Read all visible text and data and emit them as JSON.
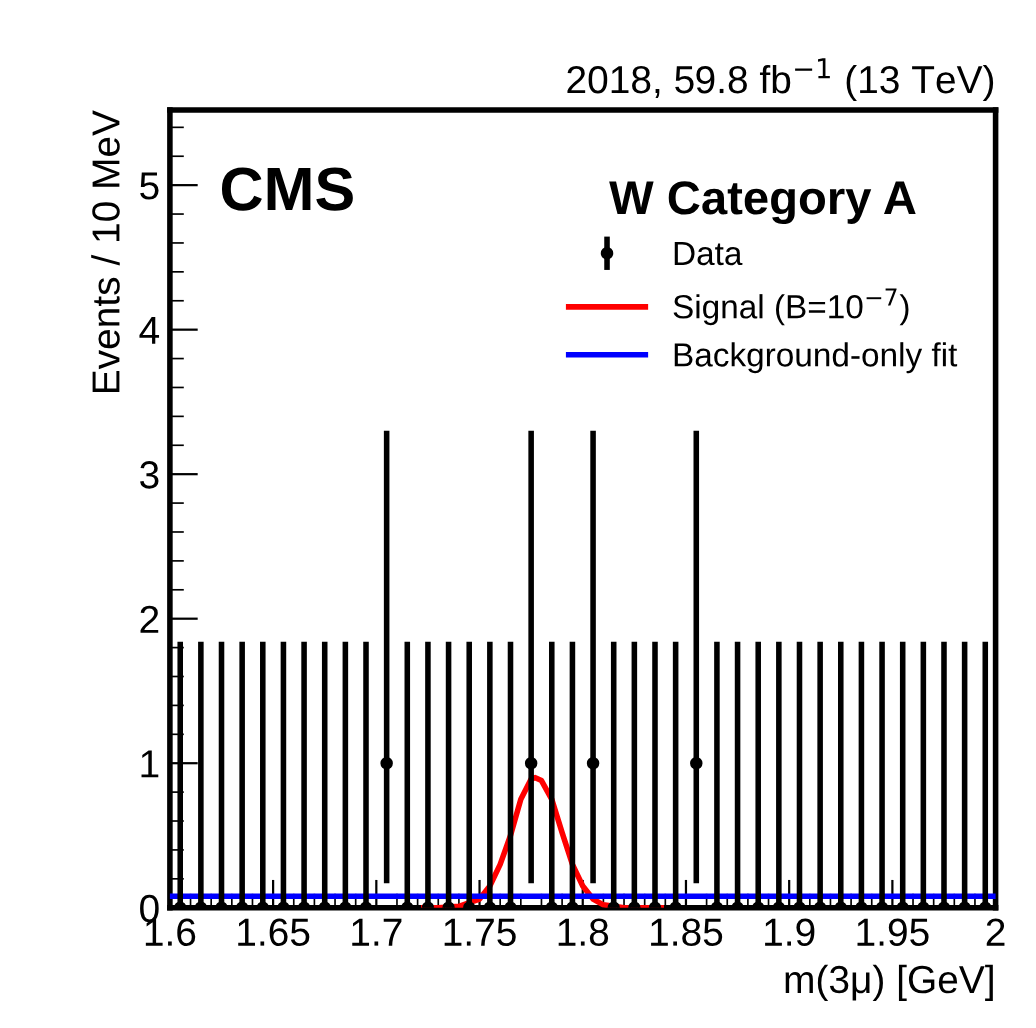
{
  "chart_data": {
    "type": "scatter",
    "title": "2018, 59.8 fb$^{−1}$ (13 TeV)",
    "xlabel": "m(3μ) [GeV]",
    "ylabel": "Events / 10 MeV",
    "legend_title": "W Category A",
    "annotations": [
      "CMS"
    ],
    "x": [
      1.605,
      1.615,
      1.625,
      1.635,
      1.645,
      1.655,
      1.665,
      1.675,
      1.685,
      1.695,
      1.705,
      1.715,
      1.725,
      1.735,
      1.745,
      1.755,
      1.765,
      1.775,
      1.785,
      1.795,
      1.805,
      1.815,
      1.825,
      1.835,
      1.845,
      1.855,
      1.865,
      1.875,
      1.885,
      1.895,
      1.905,
      1.915,
      1.925,
      1.935,
      1.945,
      1.955,
      1.965,
      1.975,
      1.985,
      1.995
    ],
    "series": [
      {
        "name": "Data",
        "color": "#000000",
        "marker": "circle",
        "values": [
          0,
          0,
          0,
          0,
          0,
          0,
          0,
          0,
          0,
          0,
          1,
          0,
          0,
          0,
          0,
          0,
          0,
          1,
          0,
          0,
          1,
          0,
          0,
          0,
          0,
          1,
          0,
          0,
          0,
          0,
          0,
          0,
          0,
          0,
          0,
          0,
          0,
          0,
          0,
          0
        ],
        "errors": [
          [
            0,
            1.84
          ],
          [
            0,
            1.84
          ],
          [
            0,
            1.84
          ],
          [
            0,
            1.84
          ],
          [
            0,
            1.84
          ],
          [
            0,
            1.84
          ],
          [
            0,
            1.84
          ],
          [
            0,
            1.84
          ],
          [
            0,
            1.84
          ],
          [
            0,
            1.84
          ],
          [
            0.17,
            3.3
          ],
          [
            0,
            1.84
          ],
          [
            0,
            1.84
          ],
          [
            0,
            1.84
          ],
          [
            0,
            1.84
          ],
          [
            0,
            1.84
          ],
          [
            0,
            1.84
          ],
          [
            0.17,
            3.3
          ],
          [
            0,
            1.84
          ],
          [
            0,
            1.84
          ],
          [
            0.17,
            3.3
          ],
          [
            0,
            1.84
          ],
          [
            0,
            1.84
          ],
          [
            0,
            1.84
          ],
          [
            0,
            1.84
          ],
          [
            0.17,
            3.3
          ],
          [
            0,
            1.84
          ],
          [
            0,
            1.84
          ],
          [
            0,
            1.84
          ],
          [
            0,
            1.84
          ],
          [
            0,
            1.84
          ],
          [
            0,
            1.84
          ],
          [
            0,
            1.84
          ],
          [
            0,
            1.84
          ],
          [
            0,
            1.84
          ],
          [
            0,
            1.84
          ],
          [
            0,
            1.84
          ],
          [
            0,
            1.84
          ],
          [
            0,
            1.84
          ],
          [
            0,
            1.84
          ]
        ]
      },
      {
        "name": "Signal (B=10$^{−7}$)",
        "type": "line",
        "color": "#ff0000",
        "x": [
          1.723,
          1.73,
          1.74,
          1.75,
          1.755,
          1.76,
          1.765,
          1.77,
          1.775,
          1.777,
          1.78,
          1.785,
          1.79,
          1.795,
          1.8,
          1.805,
          1.81,
          1.82,
          1.838
        ],
        "values": [
          0,
          0,
          0.01,
          0.06,
          0.15,
          0.3,
          0.5,
          0.75,
          0.89,
          0.9,
          0.88,
          0.75,
          0.52,
          0.3,
          0.15,
          0.06,
          0.02,
          0,
          0
        ]
      },
      {
        "name": "Background-only fit",
        "type": "line",
        "color": "#0000ff",
        "x": [
          1.6,
          2.0
        ],
        "values": [
          0.08,
          0.08
        ]
      }
    ],
    "xlim": [
      1.6,
      2.0
    ],
    "xticks": [
      1.6,
      1.65,
      1.7,
      1.75,
      1.8,
      1.85,
      1.9,
      1.95,
      2
    ],
    "ylim": [
      0,
      5.52
    ],
    "yticks": [
      0,
      1,
      2,
      3,
      4,
      5
    ],
    "legend": "top right",
    "grid": false
  }
}
